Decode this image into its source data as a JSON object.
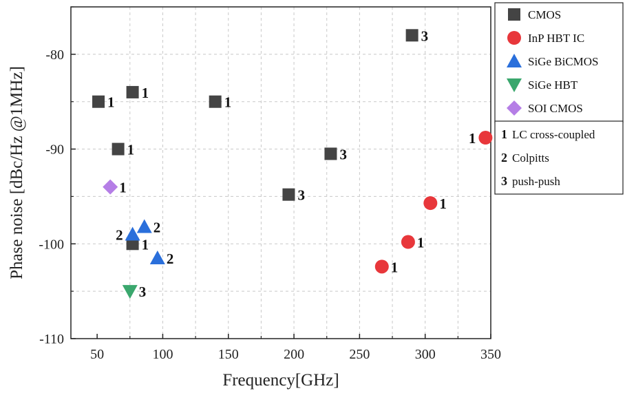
{
  "chart_data": {
    "type": "scatter",
    "xlabel": "Frequency[GHz]",
    "ylabel": "Phase noise [dBc/Hz @1MHz]",
    "xlim": [
      30,
      350
    ],
    "ylim": [
      -110,
      -75
    ],
    "xticks": [
      50,
      100,
      150,
      200,
      250,
      300,
      350
    ],
    "yticks": [
      -110,
      -100,
      -90,
      -80
    ],
    "grid": true,
    "legend_position": "right",
    "series": [
      {
        "name": "CMOS",
        "marker": "square",
        "color": "#444444",
        "points": [
          {
            "x": 51,
            "y": -85,
            "label": "1"
          },
          {
            "x": 77,
            "y": -84,
            "label": "1"
          },
          {
            "x": 66,
            "y": -90,
            "label": "1"
          },
          {
            "x": 140,
            "y": -85,
            "label": "1"
          },
          {
            "x": 77,
            "y": -100,
            "label": "1"
          },
          {
            "x": 228,
            "y": -90.5,
            "label": "3"
          },
          {
            "x": 196,
            "y": -94.8,
            "label": "3"
          },
          {
            "x": 290,
            "y": -78,
            "label": "3"
          }
        ]
      },
      {
        "name": "InP HBT IC",
        "marker": "circle",
        "color": "#e8373b",
        "points": [
          {
            "x": 346,
            "y": -88.8,
            "label": "1",
            "label_side": "left"
          },
          {
            "x": 304,
            "y": -95.7,
            "label": "1"
          },
          {
            "x": 287,
            "y": -99.8,
            "label": "1"
          },
          {
            "x": 267,
            "y": -102.4,
            "label": "1"
          }
        ]
      },
      {
        "name": "SiGe BiCMOS",
        "marker": "triangle-up",
        "color": "#2a6fdb",
        "points": [
          {
            "x": 77,
            "y": -99,
            "label": "2",
            "label_side": "left"
          },
          {
            "x": 86,
            "y": -98.2,
            "label": "2"
          },
          {
            "x": 96,
            "y": -101.5,
            "label": "2"
          }
        ]
      },
      {
        "name": "SiGe HBT",
        "marker": "triangle-down",
        "color": "#3aa76d",
        "points": [
          {
            "x": 75,
            "y": -105,
            "label": "3"
          }
        ]
      },
      {
        "name": "SOI CMOS",
        "marker": "diamond",
        "color": "#b57ee6",
        "points": [
          {
            "x": 60,
            "y": -94,
            "label": "1"
          }
        ]
      }
    ],
    "legend_topologies": [
      {
        "number": "1",
        "text": "LC cross-coupled"
      },
      {
        "number": "2",
        "text": "Colpitts"
      },
      {
        "number": "3",
        "text": "push-push"
      }
    ]
  }
}
